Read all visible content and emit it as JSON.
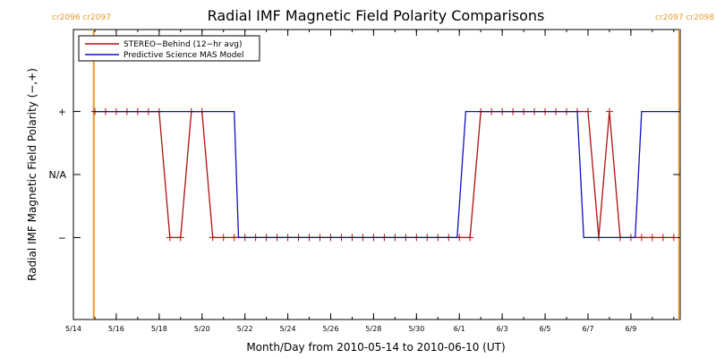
{
  "chart_data": {
    "type": "line",
    "title": "Radial IMF Magnetic Field Polarity Comparisons",
    "xlabel": "Month/Day from 2010-05-14 to 2010-06-10 (UT)",
    "ylabel": "Radial IMF Magnetic Field Polarity (−,+)",
    "xlim_days": [
      0,
      28.3
    ],
    "ylim": [
      -2.3,
      2.3
    ],
    "x_ticks": [
      {
        "day": 0,
        "label": "5/14"
      },
      {
        "day": 2,
        "label": "5/16"
      },
      {
        "day": 4,
        "label": "5/18"
      },
      {
        "day": 6,
        "label": "5/20"
      },
      {
        "day": 8,
        "label": "5/22"
      },
      {
        "day": 10,
        "label": "5/24"
      },
      {
        "day": 12,
        "label": "5/26"
      },
      {
        "day": 14,
        "label": "5/28"
      },
      {
        "day": 16,
        "label": "5/30"
      },
      {
        "day": 18,
        "label": "6/1"
      },
      {
        "day": 20,
        "label": "6/3"
      },
      {
        "day": 22,
        "label": "6/5"
      },
      {
        "day": 24,
        "label": "6/7"
      },
      {
        "day": 26,
        "label": "6/9"
      }
    ],
    "y_ticks": [
      {
        "value": 1,
        "label": "+"
      },
      {
        "value": 0,
        "label": "N/A"
      },
      {
        "value": -1,
        "label": "−"
      }
    ],
    "carrington_markers": [
      {
        "day": 0.95,
        "label": "cr2096 cr2097",
        "label_pos": "left"
      },
      {
        "day": 28.25,
        "label": "cr2097 cr2098",
        "label_pos": "right"
      }
    ],
    "colors": {
      "stereo": "#b01010",
      "model": "#1010c8",
      "marker_line": "#e69a2e"
    },
    "legend": {
      "placement": "top-left",
      "entries": [
        {
          "name": "STEREO−Behind (12−hr avg)",
          "color": "#b01010"
        },
        {
          "name": "Predictive Science MAS Model",
          "color": "#1010c8"
        }
      ]
    },
    "series": [
      {
        "name": "STEREO−Behind (12−hr avg)",
        "color": "#b01010",
        "markers": true,
        "points": [
          [
            1.0,
            1
          ],
          [
            1.5,
            1
          ],
          [
            2.0,
            1
          ],
          [
            2.5,
            1
          ],
          [
            3.0,
            1
          ],
          [
            3.5,
            1
          ],
          [
            4.0,
            1
          ],
          [
            4.5,
            -1
          ],
          [
            5.0,
            -1
          ],
          [
            5.5,
            1
          ],
          [
            6.0,
            1
          ],
          [
            6.5,
            -1
          ],
          [
            7.0,
            -1
          ],
          [
            7.5,
            -1
          ],
          [
            8.0,
            -1
          ],
          [
            8.5,
            -1
          ],
          [
            9.0,
            -1
          ],
          [
            9.5,
            -1
          ],
          [
            10.0,
            -1
          ],
          [
            10.5,
            -1
          ],
          [
            11.0,
            -1
          ],
          [
            11.5,
            -1
          ],
          [
            12.0,
            -1
          ],
          [
            12.5,
            -1
          ],
          [
            13.0,
            -1
          ],
          [
            13.5,
            -1
          ],
          [
            14.0,
            -1
          ],
          [
            14.5,
            -1
          ],
          [
            15.0,
            -1
          ],
          [
            15.5,
            -1
          ],
          [
            16.0,
            -1
          ],
          [
            16.5,
            -1
          ],
          [
            17.0,
            -1
          ],
          [
            17.5,
            -1
          ],
          [
            18.0,
            -1
          ],
          [
            18.5,
            -1
          ],
          [
            19.0,
            1
          ],
          [
            19.5,
            1
          ],
          [
            20.0,
            1
          ],
          [
            20.5,
            1
          ],
          [
            21.0,
            1
          ],
          [
            21.5,
            1
          ],
          [
            22.0,
            1
          ],
          [
            22.5,
            1
          ],
          [
            23.0,
            1
          ],
          [
            23.5,
            1
          ],
          [
            24.0,
            1
          ],
          [
            24.5,
            -1
          ],
          [
            25.0,
            1
          ],
          [
            25.5,
            -1
          ],
          [
            26.0,
            -1
          ],
          [
            26.5,
            -1
          ],
          [
            27.0,
            -1
          ],
          [
            27.5,
            -1
          ],
          [
            28.0,
            -1
          ]
        ]
      },
      {
        "name": "Predictive Science MAS Model",
        "color": "#1010c8",
        "markers": false,
        "points": [
          [
            0.9,
            1
          ],
          [
            7.5,
            1
          ],
          [
            7.7,
            -1
          ],
          [
            17.9,
            -1
          ],
          [
            18.3,
            1
          ],
          [
            23.5,
            1
          ],
          [
            23.8,
            -1
          ],
          [
            26.2,
            -1
          ],
          [
            26.5,
            1
          ],
          [
            28.3,
            1
          ]
        ]
      }
    ]
  }
}
